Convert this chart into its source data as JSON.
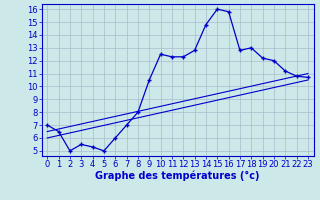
{
  "title": "Graphe des températures (°c)",
  "bg_color": "#cce8e8",
  "line_color": "#0000cc",
  "grid_color": "#aabccc",
  "xlim": [
    -0.5,
    23.5
  ],
  "ylim": [
    4.6,
    16.4
  ],
  "xticks": [
    0,
    1,
    2,
    3,
    4,
    5,
    6,
    7,
    8,
    9,
    10,
    11,
    12,
    13,
    14,
    15,
    16,
    17,
    18,
    19,
    20,
    21,
    22,
    23
  ],
  "yticks": [
    5,
    6,
    7,
    8,
    9,
    10,
    11,
    12,
    13,
    14,
    15,
    16
  ],
  "curve1_x": [
    0,
    1,
    2,
    3,
    4,
    5,
    6,
    7,
    8,
    9,
    10,
    11,
    12,
    13,
    14,
    15,
    16,
    17,
    18,
    19,
    20,
    21,
    22,
    23
  ],
  "curve1_y": [
    7.0,
    6.5,
    5.0,
    5.5,
    5.3,
    5.0,
    6.0,
    7.0,
    8.0,
    10.5,
    12.5,
    12.3,
    12.3,
    12.8,
    14.8,
    16.0,
    15.8,
    12.8,
    13.0,
    12.2,
    12.0,
    11.2,
    10.8,
    10.7
  ],
  "curve2_x": [
    0,
    23
  ],
  "curve2_y": [
    6.5,
    11.0
  ],
  "curve3_x": [
    0,
    23
  ],
  "curve3_y": [
    6.0,
    10.5
  ],
  "xlabel_fontsize": 7,
  "tick_fontsize": 6,
  "ylabel_fontsize": 6
}
